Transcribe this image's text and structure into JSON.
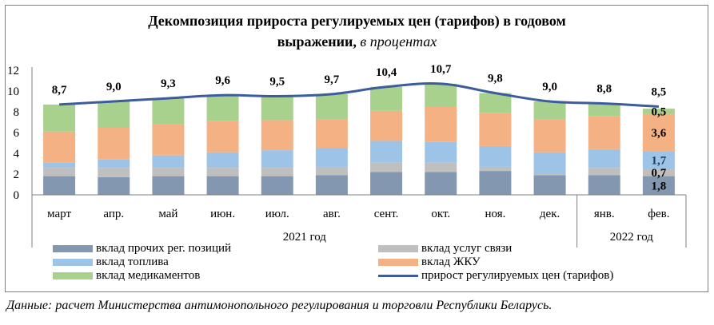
{
  "title": "Декомпозиция прироста регулируемых цен (тарифов) в годовом",
  "title_line2": "выражении,",
  "title_sub": "в процентах",
  "source": "Данные: расчет Министерства антимонопольного регулирования и торговли Республики Беларусь.",
  "colors": {
    "other": "#8497b0",
    "communication": "#bfbfbf",
    "fuel": "#9dc3e6",
    "housing": "#f4b183",
    "medicine": "#a9d18e",
    "line": "#3d5c9b"
  },
  "chart_data": {
    "type": "bar",
    "stacked": true,
    "categories": [
      "март",
      "апр.",
      "май",
      "июн.",
      "июл.",
      "авг.",
      "сент.",
      "окт.",
      "ноя.",
      "дек.",
      "янв.",
      "фев."
    ],
    "year_groups": [
      {
        "label": "2021 год",
        "from": 0,
        "to": 9
      },
      {
        "label": "2022 год",
        "from": 10,
        "to": 11
      }
    ],
    "ylim": [
      0,
      12
    ],
    "yticks": [
      0,
      2,
      4,
      6,
      8,
      10,
      12
    ],
    "series": [
      {
        "key": "other",
        "name": "вклад прочих рег. позиций",
        "values": [
          1.8,
          1.7,
          1.8,
          1.8,
          1.8,
          1.9,
          2.2,
          2.2,
          2.3,
          1.9,
          1.9,
          1.8
        ]
      },
      {
        "key": "communication",
        "name": "вклад услуг связи",
        "values": [
          0.8,
          0.9,
          0.8,
          0.8,
          0.8,
          0.8,
          0.9,
          0.9,
          0.4,
          0.1,
          0.7,
          0.7
        ]
      },
      {
        "key": "fuel",
        "name": "вклад топлива",
        "values": [
          0.5,
          0.8,
          1.2,
          1.5,
          1.7,
          1.8,
          2.1,
          2.0,
          2.0,
          2.1,
          1.8,
          1.7
        ]
      },
      {
        "key": "housing",
        "name": "вклад ЖКУ",
        "values": [
          3.0,
          3.1,
          3.0,
          3.0,
          2.9,
          2.8,
          2.9,
          3.4,
          3.2,
          3.2,
          3.2,
          3.6
        ]
      },
      {
        "key": "medicine",
        "name": "вклад медикаментов",
        "values": [
          2.6,
          2.5,
          2.5,
          2.5,
          2.3,
          2.4,
          2.3,
          2.2,
          1.9,
          1.7,
          1.2,
          0.5
        ]
      }
    ],
    "line": {
      "name": "прирост регулируемых цен (тарифов)",
      "values": [
        8.7,
        9.0,
        9.3,
        9.6,
        9.5,
        9.7,
        10.4,
        10.7,
        9.8,
        9.0,
        8.8,
        8.5
      ]
    },
    "line_labels": [
      "8,7",
      "9,0",
      "9,3",
      "9,6",
      "9,5",
      "9,7",
      "10,4",
      "10,7",
      "9,8",
      "9,0",
      "8,8",
      "8,5"
    ],
    "segment_labels_last": [
      "1,8",
      "0,7",
      "1,7",
      "3,6",
      "0,5"
    ],
    "legend": [
      {
        "key": "other",
        "label": "вклад прочих рег. позиций"
      },
      {
        "key": "communication",
        "label": "вклад услуг связи"
      },
      {
        "key": "fuel",
        "label": "вклад топлива"
      },
      {
        "key": "housing",
        "label": "вклад ЖКУ"
      },
      {
        "key": "medicine",
        "label": "вклад медикаментов"
      },
      {
        "key": "line",
        "label": "прирост регулируемых цен (тарифов)"
      }
    ]
  }
}
